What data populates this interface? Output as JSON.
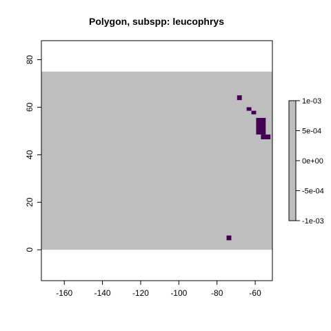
{
  "chart_data": {
    "type": "heatmap",
    "title": "Polygon, subspp: leucophrys",
    "xlabel": "",
    "ylabel": "",
    "xlim": [
      -172,
      -51
    ],
    "ylim": [
      -13,
      88
    ],
    "x_ticks": [
      -160,
      -140,
      -120,
      -100,
      -80,
      -60
    ],
    "y_ticks": [
      0,
      20,
      40,
      60,
      80
    ],
    "grid": false,
    "background_extent": {
      "x": [
        -172,
        -51
      ],
      "y": [
        0,
        75
      ]
    },
    "background_value": 0,
    "cells": [
      {
        "x0": -69.5,
        "x1": -67,
        "y0": 63,
        "y1": 65,
        "value": 0.001
      },
      {
        "x0": -64.5,
        "x1": -62,
        "y0": 58.5,
        "y1": 60,
        "value": 0.001
      },
      {
        "x0": -62,
        "x1": -59.5,
        "y0": 57,
        "y1": 58.5,
        "value": 0.001
      },
      {
        "x0": -59.5,
        "x1": -54.5,
        "y0": 48.5,
        "y1": 55.5,
        "value": 0.001
      },
      {
        "x0": -57,
        "x1": -52,
        "y0": 46.5,
        "y1": 48.5,
        "value": 0.001
      },
      {
        "x0": -75,
        "x1": -72.5,
        "y0": 4,
        "y1": 6,
        "value": 0.001
      }
    ],
    "legend": {
      "placement": "right",
      "range": [
        -0.001,
        0.001
      ],
      "tick_labels": [
        "1e-03",
        "5e-04",
        "0e+00",
        "-5e-04",
        "-1e-03"
      ],
      "tick_values": [
        0.001,
        0.0005,
        0,
        -0.0005,
        -0.001
      ]
    },
    "colors": {
      "background_fill": "#bebebe",
      "cell_fill": "#440154",
      "axis": "#000000"
    }
  }
}
